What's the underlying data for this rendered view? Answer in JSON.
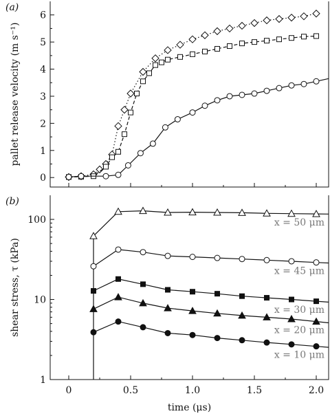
{
  "chart_data": [
    {
      "panel_label": "(a)",
      "type": "line",
      "xlabel": "",
      "ylabel": "pallet release velocity (m s⁻¹)",
      "xlim": [
        -0.15,
        2.1
      ],
      "ylim": [
        -0.35,
        6.5
      ],
      "xticks": [
        0,
        0.5,
        1.0,
        1.5,
        2.0
      ],
      "xtick_labels": [
        "0",
        "0.5",
        "1.0",
        "1.5",
        "2.0"
      ],
      "yticks": [
        0,
        1,
        2,
        3,
        4,
        5,
        6
      ],
      "ytick_labels": [
        "0",
        "1",
        "2",
        "3",
        "4",
        "5",
        "6"
      ],
      "series": [
        {
          "marker": "diamond",
          "line": "dotted",
          "x": [
            0,
            0.1,
            0.2,
            0.25,
            0.3,
            0.35,
            0.4,
            0.45,
            0.5,
            0.6,
            0.7,
            0.8,
            0.9,
            1.0,
            1.1,
            1.2,
            1.3,
            1.4,
            1.5,
            1.6,
            1.7,
            1.8,
            1.9,
            2.0
          ],
          "y": [
            0.02,
            0.05,
            0.12,
            0.3,
            0.5,
            0.85,
            1.9,
            2.5,
            3.1,
            3.9,
            4.4,
            4.7,
            4.9,
            5.1,
            5.25,
            5.4,
            5.5,
            5.6,
            5.7,
            5.8,
            5.85,
            5.9,
            5.95,
            6.05
          ]
        },
        {
          "marker": "square",
          "line": "dashed",
          "x": [
            0,
            0.1,
            0.2,
            0.3,
            0.35,
            0.4,
            0.45,
            0.5,
            0.55,
            0.6,
            0.65,
            0.7,
            0.75,
            0.8,
            0.9,
            1.0,
            1.1,
            1.2,
            1.3,
            1.4,
            1.5,
            1.6,
            1.7,
            1.8,
            1.9,
            2.0
          ],
          "y": [
            0.02,
            0.03,
            0.05,
            0.4,
            0.75,
            0.95,
            1.6,
            2.4,
            3.1,
            3.55,
            3.85,
            4.15,
            4.25,
            4.35,
            4.45,
            4.55,
            4.65,
            4.75,
            4.85,
            4.95,
            5.0,
            5.05,
            5.1,
            5.15,
            5.2,
            5.22
          ]
        },
        {
          "marker": "circle",
          "line": "solid",
          "x": [
            0,
            0.1,
            0.3,
            0.4,
            0.48,
            0.58,
            0.68,
            0.78,
            0.88,
            1.0,
            1.1,
            1.2,
            1.3,
            1.4,
            1.5,
            1.6,
            1.7,
            1.8,
            1.9,
            2.0
          ],
          "y": [
            0.02,
            0.05,
            0.05,
            0.1,
            0.45,
            0.9,
            1.25,
            1.85,
            2.15,
            2.4,
            2.65,
            2.85,
            3.0,
            3.05,
            3.1,
            3.2,
            3.3,
            3.4,
            3.45,
            3.55
          ]
        }
      ]
    },
    {
      "panel_label": "(b)",
      "type": "line",
      "xlabel": "time (μs)",
      "ylabel": "shear stress, τ (kPa)",
      "yscale": "log",
      "xlim": [
        -0.15,
        2.1
      ],
      "ylim": [
        1,
        200
      ],
      "xticks": [
        0,
        0.5,
        1.0,
        1.5,
        2.0
      ],
      "xtick_labels": [
        "0",
        "0.5",
        "1.0",
        "1.5",
        "2.0"
      ],
      "yticks": [
        1,
        10,
        100
      ],
      "ytick_labels": [
        "1",
        "10",
        "100"
      ],
      "series": [
        {
          "name": "x = 50 μm",
          "marker": "open-triangle",
          "x": [
            0.2,
            0.4,
            0.6,
            0.8,
            1.0,
            1.2,
            1.4,
            1.6,
            1.8,
            2.0
          ],
          "y": [
            62,
            125,
            128,
            122,
            123,
            122,
            121,
            119,
            118,
            117
          ]
        },
        {
          "name": "x = 45 μm",
          "marker": "open-circle",
          "x": [
            0.2,
            0.4,
            0.6,
            0.8,
            1.0,
            1.2,
            1.4,
            1.6,
            1.8,
            2.0
          ],
          "y": [
            26,
            42,
            39,
            35,
            34,
            33,
            32,
            31,
            30,
            29
          ]
        },
        {
          "name": "x = 30 μm",
          "marker": "filled-square",
          "x": [
            0.2,
            0.4,
            0.6,
            0.8,
            1.0,
            1.2,
            1.4,
            1.6,
            1.8,
            2.0
          ],
          "y": [
            12.8,
            18,
            15.5,
            13.2,
            12.5,
            11.8,
            11,
            10.5,
            10,
            9.5
          ]
        },
        {
          "name": "x = 20 μm",
          "marker": "filled-triangle",
          "x": [
            0.2,
            0.4,
            0.6,
            0.8,
            1.0,
            1.2,
            1.4,
            1.6,
            1.8,
            2.0
          ],
          "y": [
            7.6,
            10.7,
            9,
            7.8,
            7.2,
            6.7,
            6.3,
            6,
            5.7,
            5.3
          ]
        },
        {
          "name": "x = 10 μm",
          "marker": "filled-circle",
          "x": [
            0.2,
            0.4,
            0.6,
            0.8,
            1.0,
            1.2,
            1.4,
            1.6,
            1.8,
            2.0
          ],
          "y": [
            3.9,
            5.3,
            4.5,
            3.8,
            3.6,
            3.3,
            3.1,
            2.9,
            2.75,
            2.6
          ]
        }
      ]
    }
  ]
}
